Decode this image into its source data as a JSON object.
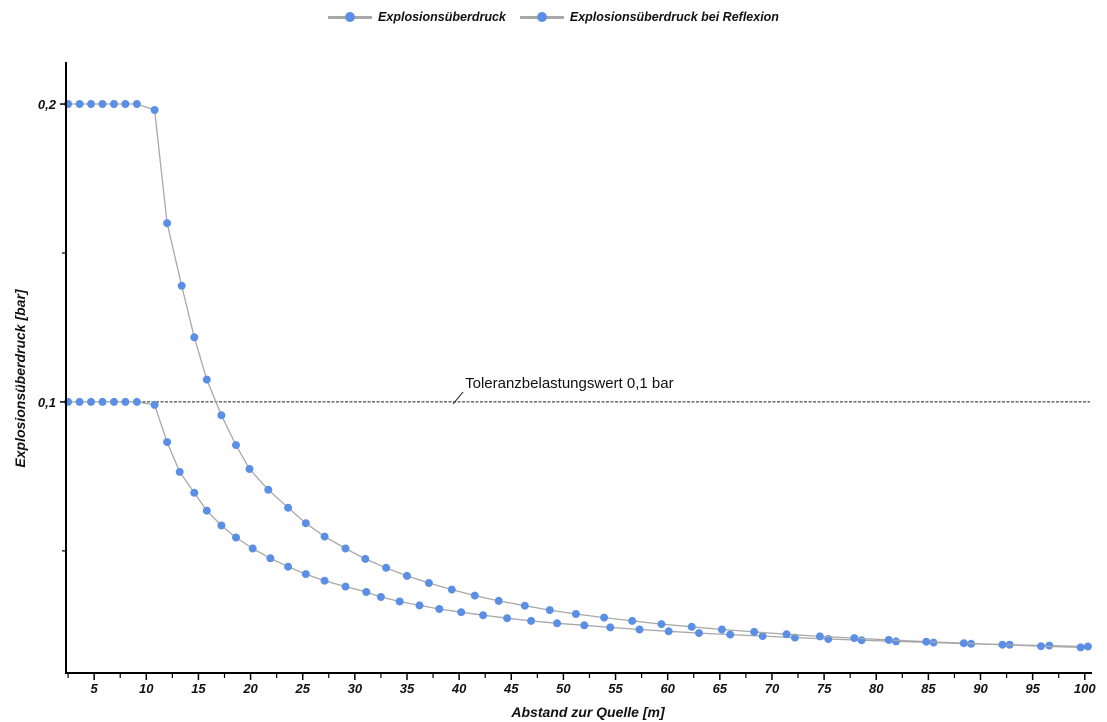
{
  "chart_data": {
    "type": "line",
    "title": "",
    "xlabel": "Abstand zur Quelle [m]",
    "ylabel": "Explosionsüberdruck [bar]",
    "xlim": [
      2.3,
      100.5
    ],
    "ylim": [
      0.009,
      0.2215
    ],
    "x_ticks": [
      "5",
      "10",
      "15",
      "20",
      "25",
      "30",
      "35",
      "40",
      "45",
      "50",
      "55",
      "60",
      "65",
      "70",
      "75",
      "80",
      "85",
      "90",
      "95",
      "100"
    ],
    "x_tick_values": [
      5,
      10,
      15,
      20,
      25,
      30,
      35,
      40,
      45,
      50,
      55,
      60,
      65,
      70,
      75,
      80,
      85,
      90,
      95,
      100
    ],
    "y_ticks": [
      "0,1",
      "0,2"
    ],
    "y_tick_values": [
      0.1,
      0.2
    ],
    "y_minor_tick_values": [
      0.05,
      0.15
    ],
    "legend_position": "top-center",
    "grid": false,
    "colors": {
      "line": "#a8a8a8",
      "marker": "#5b8fe6"
    },
    "threshold": {
      "y": 0.1,
      "label": "Toleranzbelastungswert 0,1 bar",
      "label_x": 40
    },
    "series": [
      {
        "name": "Explosionsüberdruck",
        "x": [
          2.5,
          3.6,
          4.7,
          5.8,
          6.9,
          8.0,
          9.1,
          10.8,
          12.0,
          13.2,
          14.6,
          15.8,
          17.2,
          18.6,
          20.2,
          21.9,
          23.6,
          25.3,
          27.1,
          29.1,
          31.1,
          32.5,
          34.3,
          36.2,
          38.1,
          40.2,
          42.3,
          44.6,
          46.9,
          49.4,
          52.0,
          54.5,
          57.3,
          60.1,
          63.0,
          66.0,
          69.1,
          72.2,
          75.4,
          78.6,
          81.9,
          85.5,
          89.1,
          92.8,
          96.6,
          100.3
        ],
        "y": [
          0.1,
          0.1,
          0.1,
          0.1,
          0.1,
          0.1,
          0.1,
          0.099,
          0.0865,
          0.0765,
          0.0695,
          0.0635,
          0.0585,
          0.0545,
          0.0508,
          0.0475,
          0.0447,
          0.0422,
          0.04,
          0.038,
          0.0362,
          0.0345,
          0.033,
          0.0317,
          0.0305,
          0.0294,
          0.0284,
          0.0274,
          0.0265,
          0.0257,
          0.025,
          0.0243,
          0.0236,
          0.023,
          0.0224,
          0.0219,
          0.0214,
          0.0209,
          0.0204,
          0.02,
          0.0196,
          0.0192,
          0.0188,
          0.0185,
          0.0182,
          0.0179
        ]
      },
      {
        "name": "Explosionsüberdruck bei Reflexion",
        "x": [
          2.5,
          3.6,
          4.7,
          5.8,
          6.9,
          8.0,
          9.1,
          10.8,
          12.0,
          13.4,
          14.6,
          15.8,
          17.2,
          18.6,
          19.9,
          21.7,
          23.6,
          25.3,
          27.1,
          29.1,
          31.0,
          33.0,
          35.0,
          37.1,
          39.3,
          41.5,
          43.8,
          46.3,
          48.7,
          51.2,
          53.9,
          56.6,
          59.4,
          62.3,
          65.2,
          68.3,
          71.4,
          74.6,
          77.9,
          81.2,
          84.8,
          88.4,
          92.1,
          95.8,
          99.6
        ],
        "y": [
          0.2,
          0.2,
          0.2,
          0.2,
          0.2,
          0.2,
          0.2,
          0.198,
          0.16,
          0.139,
          0.1217,
          0.1075,
          0.0955,
          0.0855,
          0.0775,
          0.0705,
          0.0645,
          0.0593,
          0.0548,
          0.0508,
          0.0473,
          0.0443,
          0.0416,
          0.0392,
          0.037,
          0.035,
          0.0332,
          0.0316,
          0.0301,
          0.0288,
          0.0276,
          0.0265,
          0.0254,
          0.0245,
          0.0236,
          0.0228,
          0.022,
          0.0213,
          0.0207,
          0.0201,
          0.0195,
          0.019,
          0.0185,
          0.018,
          0.0176
        ]
      }
    ]
  }
}
